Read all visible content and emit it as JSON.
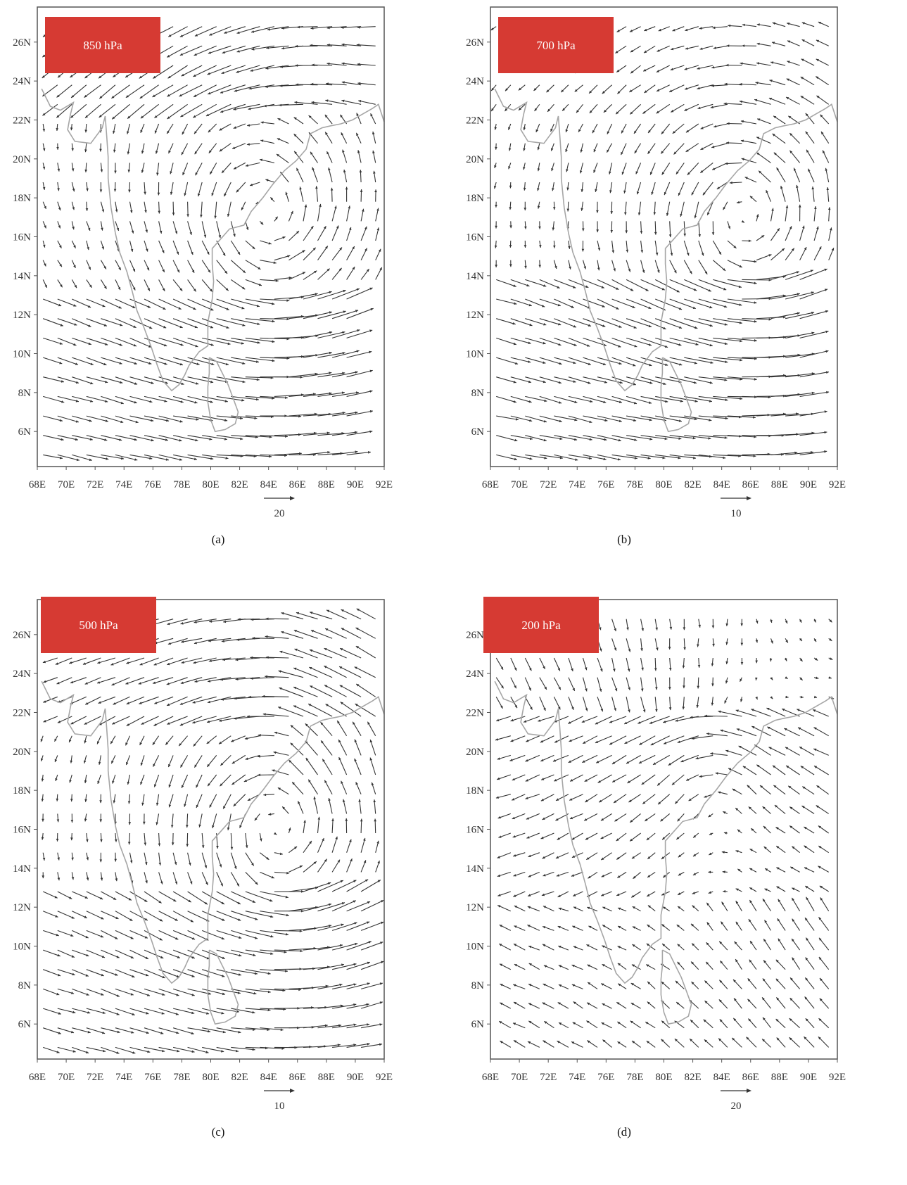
{
  "map": {
    "lon_labels": [
      "68E",
      "70E",
      "72E",
      "74E",
      "76E",
      "78E",
      "80E",
      "82E",
      "84E",
      "86E",
      "88E",
      "90E",
      "92E"
    ],
    "lat_labels": [
      "6N",
      "8N",
      "10N",
      "12N",
      "14N",
      "16N",
      "18N",
      "20N",
      "22N",
      "24N",
      "26N"
    ],
    "lon_range": [
      68,
      92
    ],
    "lat_range": [
      4.2,
      27.8
    ],
    "coastline_color": "#a6a6a6",
    "vector_color": "#333333",
    "label_box_color": "#d63a33"
  },
  "panels": [
    {
      "level": "850 hPa",
      "caption": "(a)",
      "ref_value": "20",
      "vortex_center": [
        83.8,
        17.0
      ]
    },
    {
      "level": "700 hPa",
      "caption": "(b)",
      "ref_value": "10",
      "vortex_center": [
        85.5,
        17.0
      ]
    },
    {
      "level": "500 hPa",
      "caption": "(c)",
      "ref_value": "10",
      "vortex_center": [
        84.5,
        16.0
      ]
    },
    {
      "level": "200 hPa",
      "caption": "(d)",
      "ref_value": "20",
      "vortex_center": [
        84.0,
        19.0
      ]
    }
  ]
}
